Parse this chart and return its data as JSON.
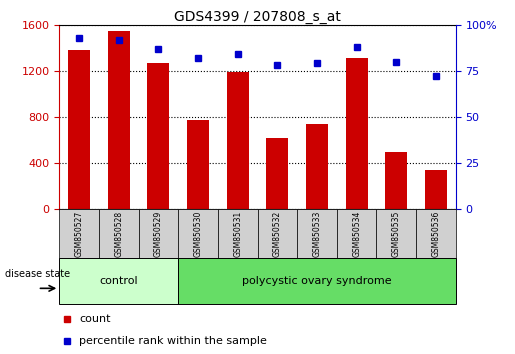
{
  "title": "GDS4399 / 207808_s_at",
  "samples": [
    "GSM850527",
    "GSM850528",
    "GSM850529",
    "GSM850530",
    "GSM850531",
    "GSM850532",
    "GSM850533",
    "GSM850534",
    "GSM850535",
    "GSM850536"
  ],
  "counts": [
    1380,
    1550,
    1270,
    770,
    1190,
    620,
    740,
    1310,
    490,
    340
  ],
  "percentiles": [
    93,
    92,
    87,
    82,
    84,
    78,
    79,
    88,
    80,
    72
  ],
  "bar_color": "#CC0000",
  "dot_color": "#0000CC",
  "left_axis_color": "#CC0000",
  "right_axis_color": "#0000CC",
  "ylim_left": [
    0,
    1600
  ],
  "ylim_right": [
    0,
    100
  ],
  "yticks_left": [
    0,
    400,
    800,
    1200,
    1600
  ],
  "yticks_right": [
    0,
    25,
    50,
    75,
    100
  ],
  "disease_state_label": "disease state",
  "legend_count_label": "count",
  "legend_percentile_label": "percentile rank within the sample",
  "control_color": "#ccffcc",
  "pcos_color": "#66dd66",
  "sample_box_color": "#d0d0d0",
  "bar_width": 0.55,
  "groups": [
    {
      "label": "control",
      "start": 0,
      "end": 2
    },
    {
      "label": "polycystic ovary syndrome",
      "start": 3,
      "end": 9
    }
  ]
}
